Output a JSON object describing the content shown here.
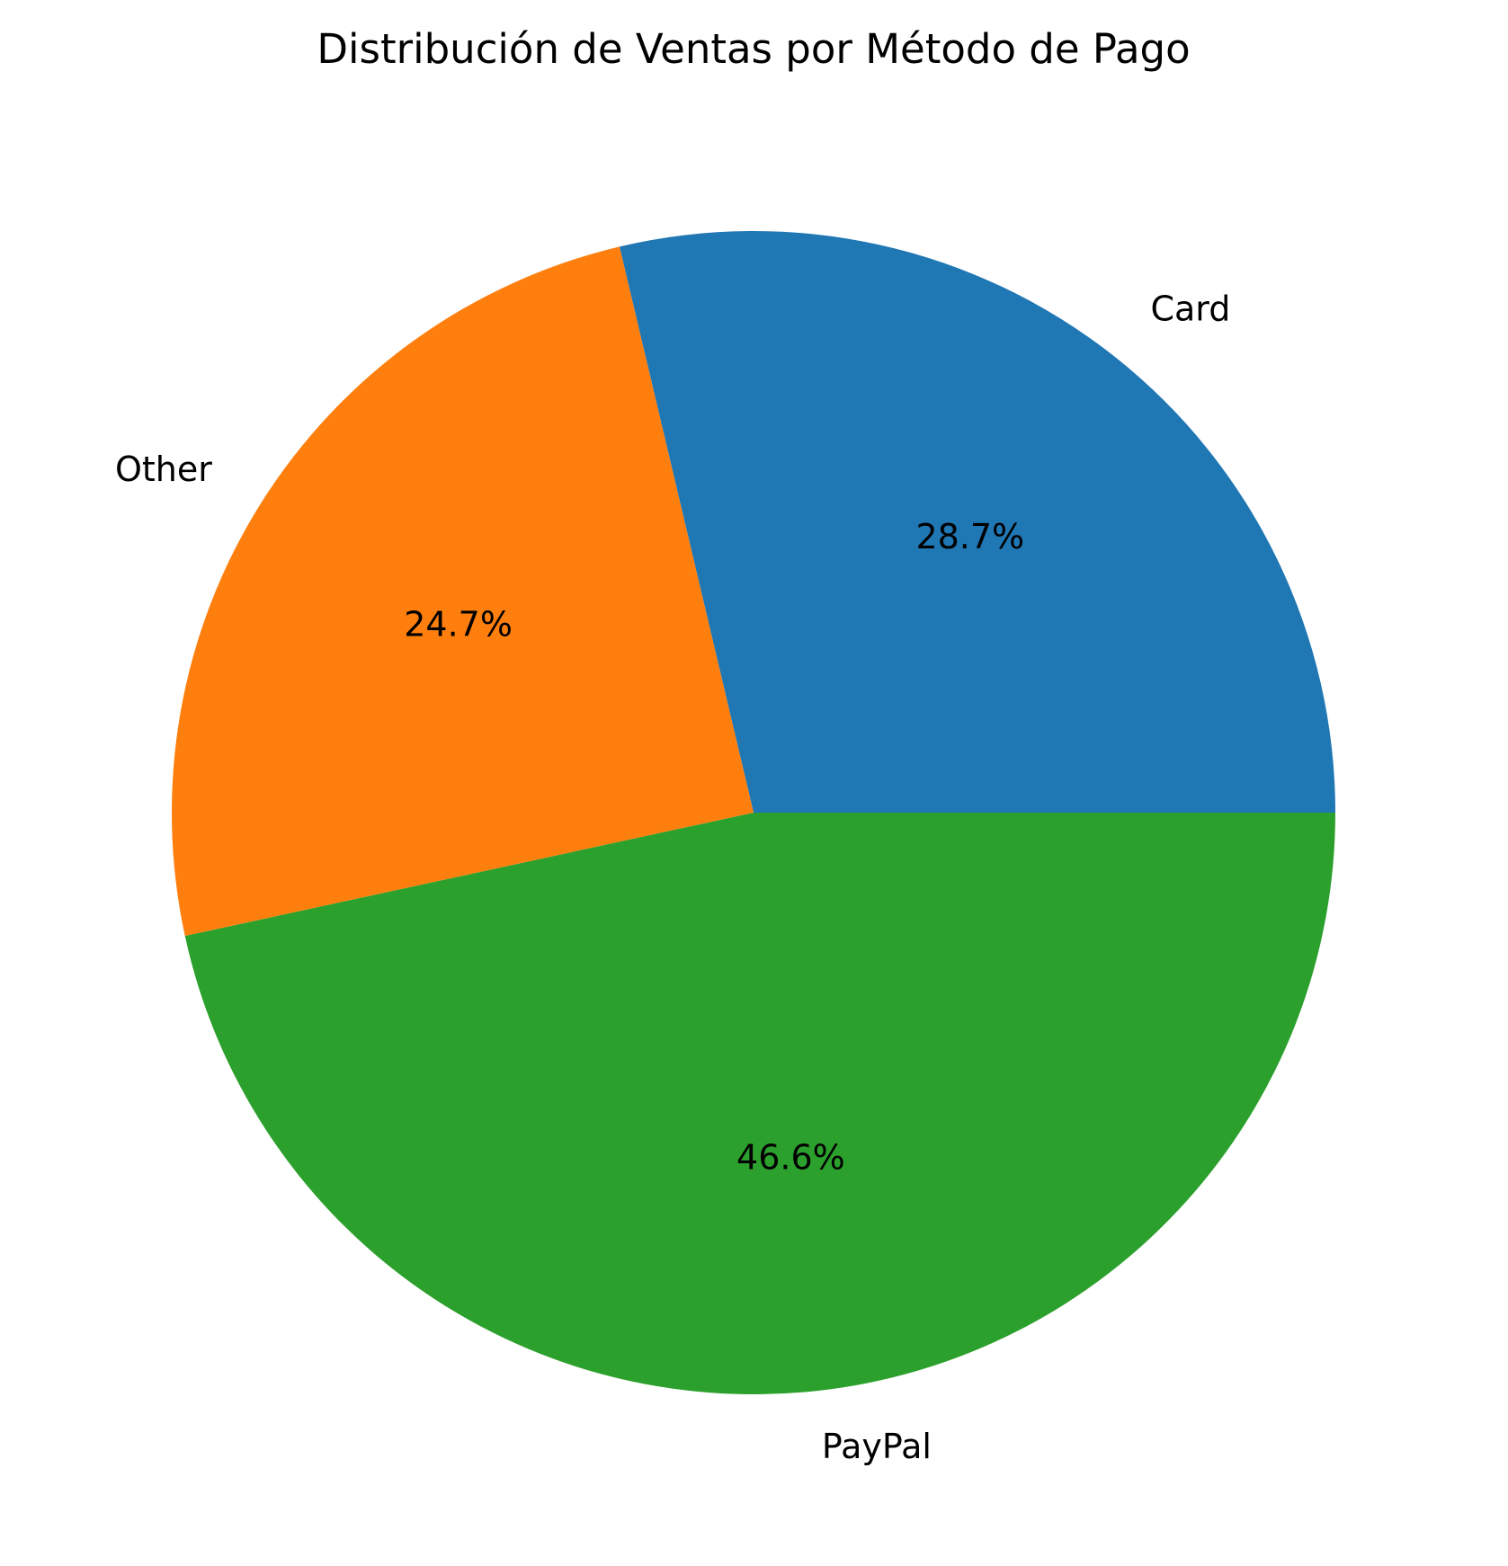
{
  "chart_data": {
    "type": "pie",
    "title": "Distribución de Ventas por Método de Pago",
    "slices": [
      {
        "label": "Card",
        "value": 28.7,
        "pct_label": "28.7%",
        "color": "#1f77b4"
      },
      {
        "label": "Other",
        "value": 24.7,
        "pct_label": "24.7%",
        "color": "#ff7f0e"
      },
      {
        "label": "PayPal",
        "value": 46.6,
        "pct_label": "46.6%",
        "color": "#2ca02c"
      }
    ],
    "start_angle_deg": 0,
    "direction": "counterclockwise",
    "legend": "none"
  }
}
